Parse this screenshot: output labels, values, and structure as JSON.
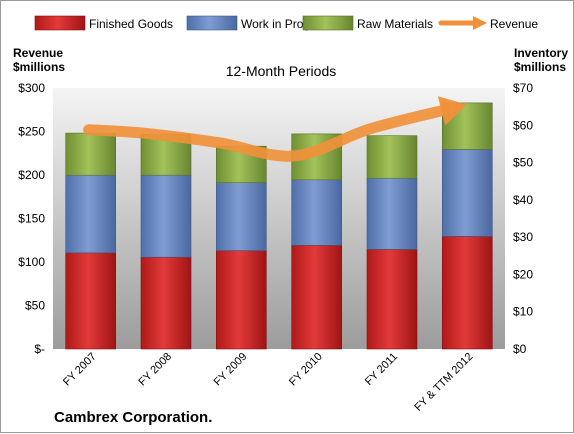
{
  "chart_data": {
    "type": "bar",
    "stacked": true,
    "title": "12-Month Periods",
    "company": "Cambrex Corporation.",
    "left_axis_label_line1": "Revenue",
    "left_axis_label_line2": "$millions",
    "right_axis_label_line1": "Inventory",
    "right_axis_label_line2": "$millions",
    "categories": [
      "FY 2007",
      "FY 2008",
      "FY 2009",
      "FY 2010",
      "FY 2011",
      "FY & TTM 2012"
    ],
    "left_ylim": [
      0,
      300
    ],
    "right_ylim": [
      0,
      70
    ],
    "left_ticks": [
      {
        "v": 0,
        "label": "$-"
      },
      {
        "v": 50,
        "label": "$50"
      },
      {
        "v": 100,
        "label": "$100"
      },
      {
        "v": 150,
        "label": "$150"
      },
      {
        "v": 200,
        "label": "$200"
      },
      {
        "v": 250,
        "label": "$250"
      },
      {
        "v": 300,
        "label": "$300"
      }
    ],
    "right_ticks": [
      {
        "v": 0,
        "label": "$0"
      },
      {
        "v": 10,
        "label": "$10"
      },
      {
        "v": 20,
        "label": "$20"
      },
      {
        "v": 30,
        "label": "$30"
      },
      {
        "v": 40,
        "label": "$40"
      },
      {
        "v": 50,
        "label": "$50"
      },
      {
        "v": 60,
        "label": "$60"
      },
      {
        "v": 70,
        "label": "$70"
      }
    ],
    "series": [
      {
        "name": "Finished Goods",
        "color": "#d42a2a",
        "values": [
          25.8,
          24.6,
          26.4,
          27.8,
          26.7,
          30.2
        ]
      },
      {
        "name": "Work in Progress",
        "color": "#6b8cc7",
        "values": [
          20.8,
          22.0,
          18.2,
          17.6,
          19.1,
          23.3
        ]
      },
      {
        "name": "Raw Materials",
        "color": "#8fb04a",
        "values": [
          11.3,
          11.0,
          9.8,
          12.3,
          11.4,
          12.5
        ]
      }
    ],
    "line_series": {
      "name": "Revenue",
      "color": "#f0913a",
      "axis": "left",
      "values": [
        252,
        248,
        237,
        222,
        253,
        276
      ]
    },
    "grid": false,
    "legend_position": "top"
  }
}
